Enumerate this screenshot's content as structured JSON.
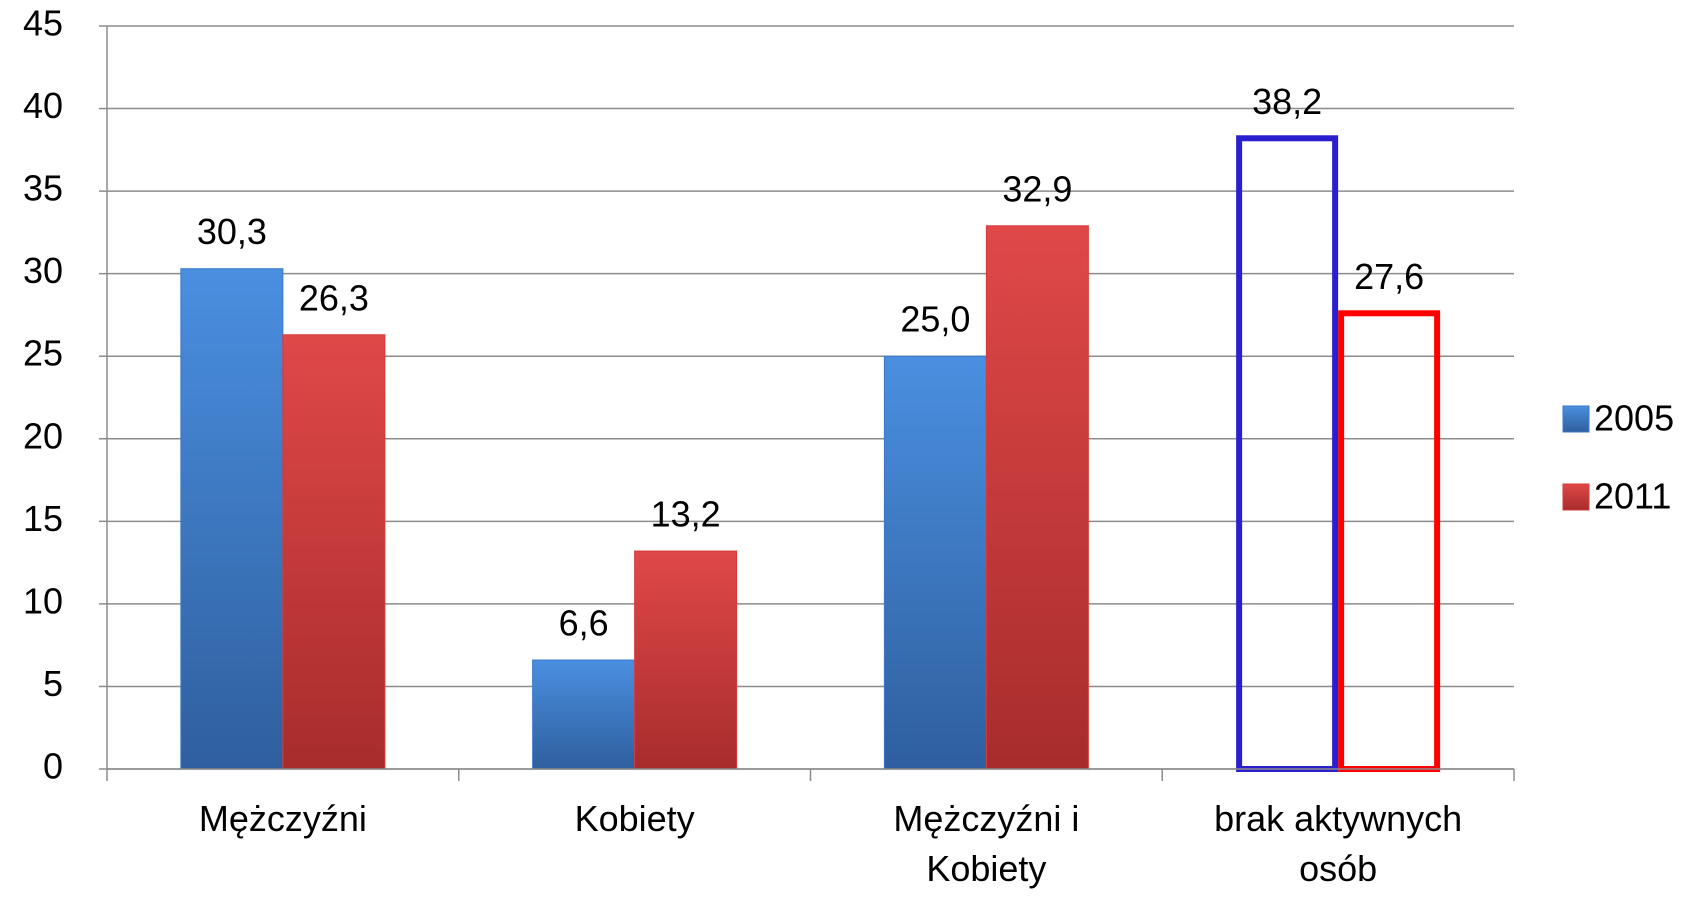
{
  "chart_data": {
    "type": "bar",
    "categories": [
      "Mężczyźni",
      "Kobiety",
      "Mężczyźni i Kobiety",
      "brak aktywnych osób"
    ],
    "series": [
      {
        "name": "2005",
        "color": "#3a78c8",
        "outline_color": "#2a1fcf",
        "values": [
          30.3,
          6.6,
          25.0,
          38.2
        ],
        "value_labels": [
          "30,3",
          "6,6",
          "25,0",
          "38,2"
        ]
      },
      {
        "name": "2011",
        "color": "#d63a3a",
        "outline_color": "#ff0000",
        "values": [
          26.3,
          13.2,
          32.9,
          27.6
        ],
        "value_labels": [
          "26,3",
          "13,2",
          "32,9",
          "27,6"
        ]
      }
    ],
    "outlined_categories": [
      3
    ],
    "ylim": [
      0,
      45
    ],
    "yticks": [
      0,
      5,
      10,
      15,
      20,
      25,
      30,
      35,
      40,
      45
    ],
    "grid": true,
    "legend": "right"
  }
}
